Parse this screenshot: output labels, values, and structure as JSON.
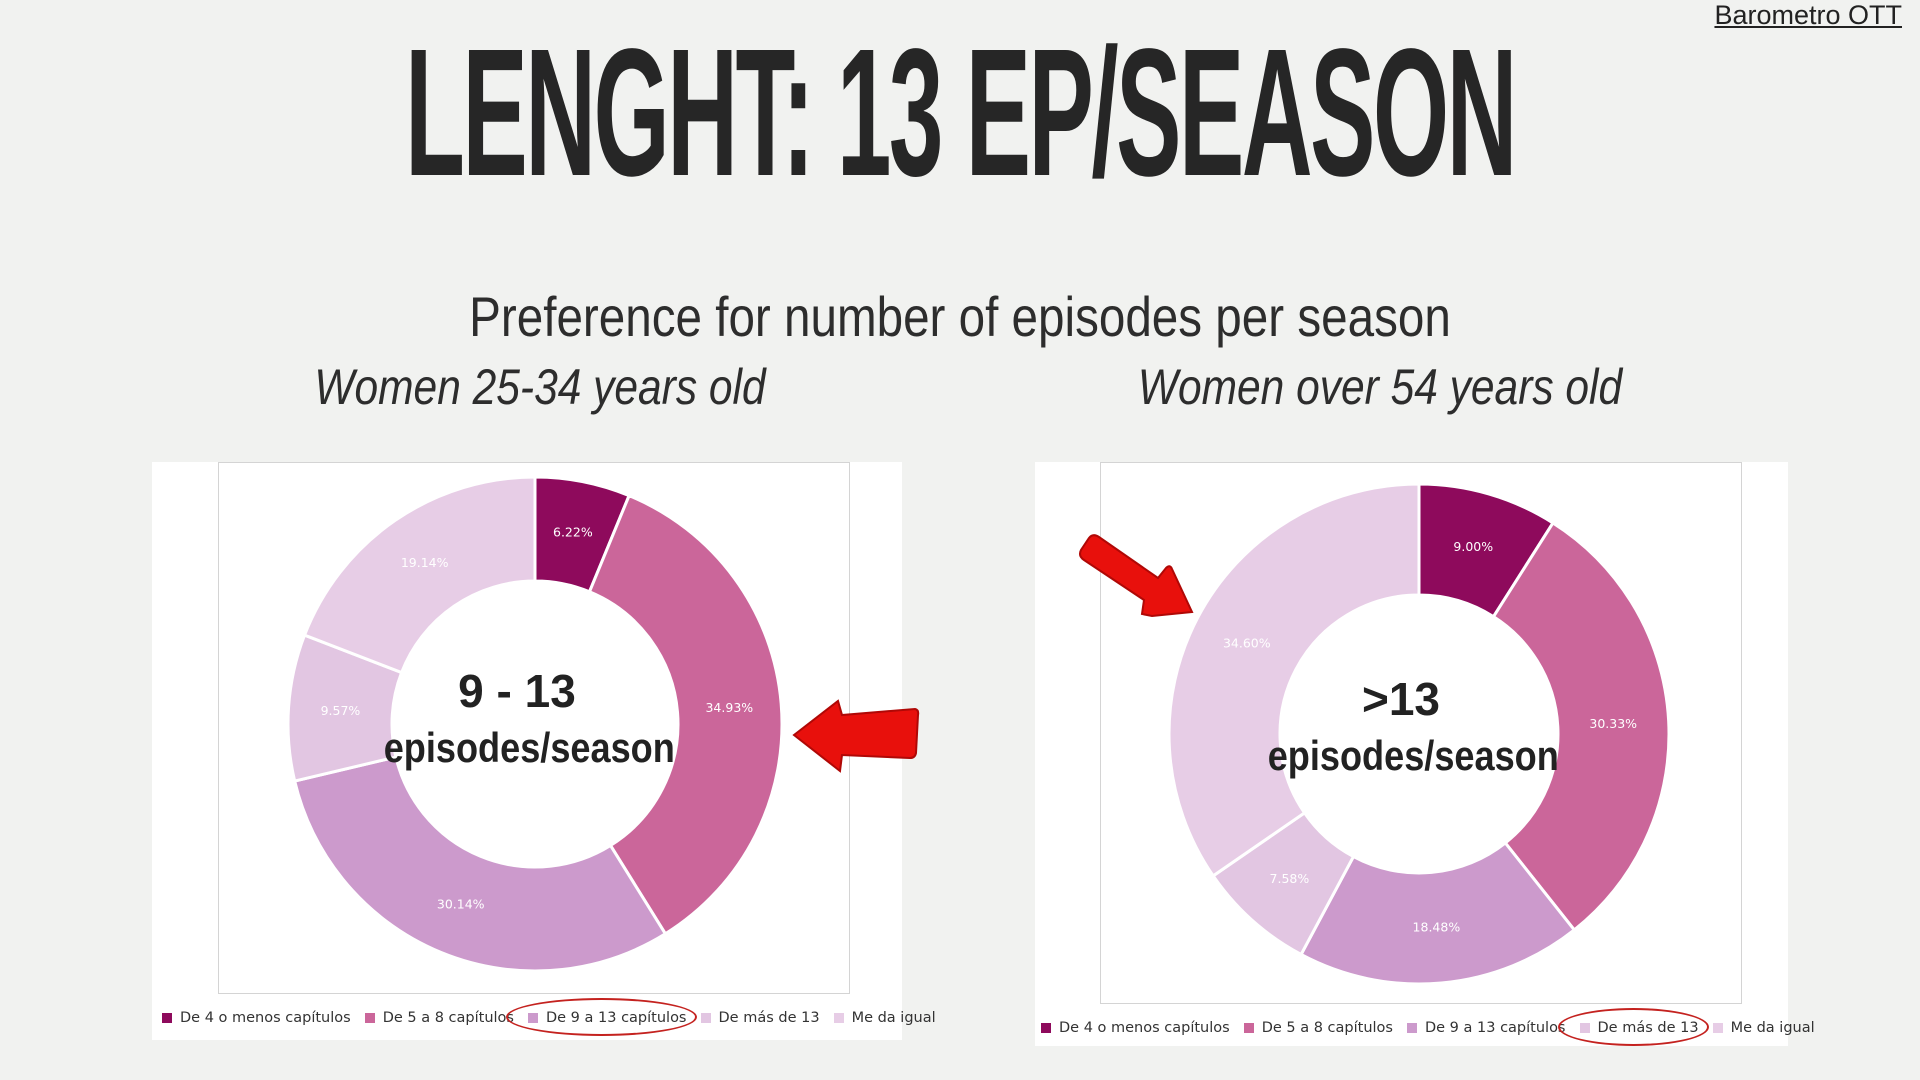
{
  "source": "Barometro OTT",
  "title": "LENGHT: 13 EP/SEASON",
  "subtitle": "Preference for number of episodes per season",
  "colors": {
    "background": "#f1f2f0",
    "highlight": "#c4221f",
    "arrow": "#e8100c"
  },
  "chart_data": [
    {
      "type": "pie",
      "variant": "donut",
      "title": "Women 25-34 years old",
      "center_label": {
        "line1": "9 - 13",
        "line2": "episodes/season"
      },
      "categories": [
        "De 4 o menos capítulos",
        "De 5 a 8 capítulos",
        "De 9 a 13 capítulos",
        "De más de 13",
        "Me da igual"
      ],
      "values": [
        6.22,
        34.93,
        30.14,
        9.57,
        19.14
      ],
      "value_labels": [
        "6.22%",
        "34.93%",
        "30.14%",
        "9.57%",
        "19.14%"
      ],
      "colors": [
        "#8e0a5c",
        "#cb669a",
        "#cc9acc",
        "#e2c6e2",
        "#e7cde6"
      ],
      "label_colors": [
        "#ffffff",
        "#ffffff",
        "#ffffff",
        "#ffffff",
        "#ffffff"
      ],
      "legend": "bottom",
      "highlighted_legend": "De 9 a 13 capítulos",
      "arrow_pointing_to": "De 5 a 8 capítulos",
      "arrow_icon": "red-arrow-left-icon"
    },
    {
      "type": "pie",
      "variant": "donut",
      "title": "Women over 54 years old",
      "center_label": {
        "line1": ">13",
        "line2": "episodes/season"
      },
      "categories": [
        "De 4 o menos capítulos",
        "De 5 a 8 capítulos",
        "De 9 a 13 capítulos",
        "De más de 13",
        "Me da igual"
      ],
      "values": [
        9.0,
        30.33,
        18.48,
        7.58,
        34.6
      ],
      "value_labels": [
        "9.00%",
        "30.33%",
        "18.48%",
        "7.58%",
        "34.60%"
      ],
      "colors": [
        "#8e0a5c",
        "#cb669a",
        "#cc9acc",
        "#e2c6e2",
        "#e7cde6"
      ],
      "label_colors": [
        "#ffffff",
        "#ffffff",
        "#ffffff",
        "#ffffff",
        "#ffffff"
      ],
      "legend": "bottom",
      "highlighted_legend": "De más de 13",
      "arrow_pointing_to": "Me da igual",
      "arrow_icon": "red-arrow-down-right-icon"
    }
  ]
}
